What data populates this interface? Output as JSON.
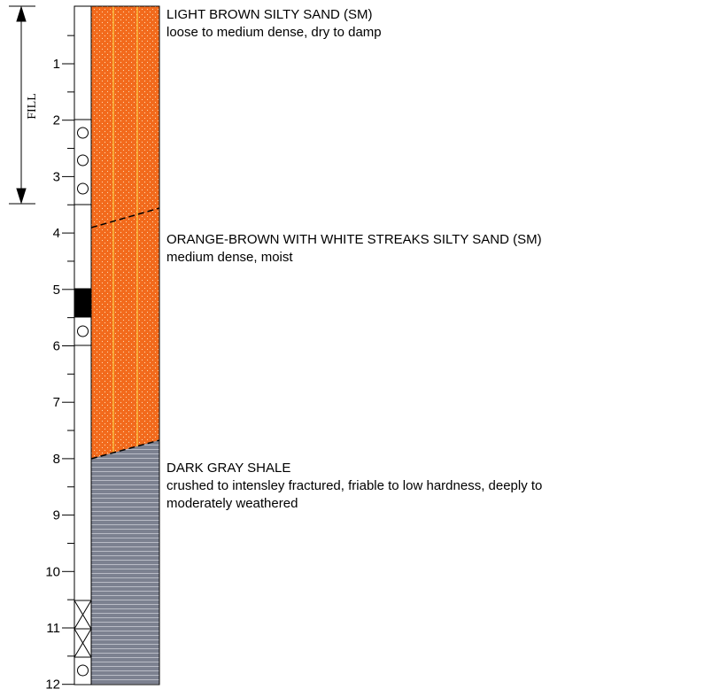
{
  "depth_axis": {
    "ticks": [
      1,
      2,
      3,
      4,
      5,
      6,
      7,
      8,
      9,
      10,
      11,
      12
    ]
  },
  "annotation": {
    "label": "FILL"
  },
  "layers": [
    {
      "title": "LIGHT BROWN SILTY SAND (SM)",
      "description": "loose to medium dense, dry to damp"
    },
    {
      "title": "ORANGE-BROWN WITH WHITE STREAKS SILTY SAND (SM)",
      "description": "medium dense, moist"
    },
    {
      "title": "DARK GRAY SHALE",
      "description_lines": [
        "crushed to intensley fractured, friable to low hardness, deeply to",
        "moderately weathered"
      ]
    }
  ]
}
